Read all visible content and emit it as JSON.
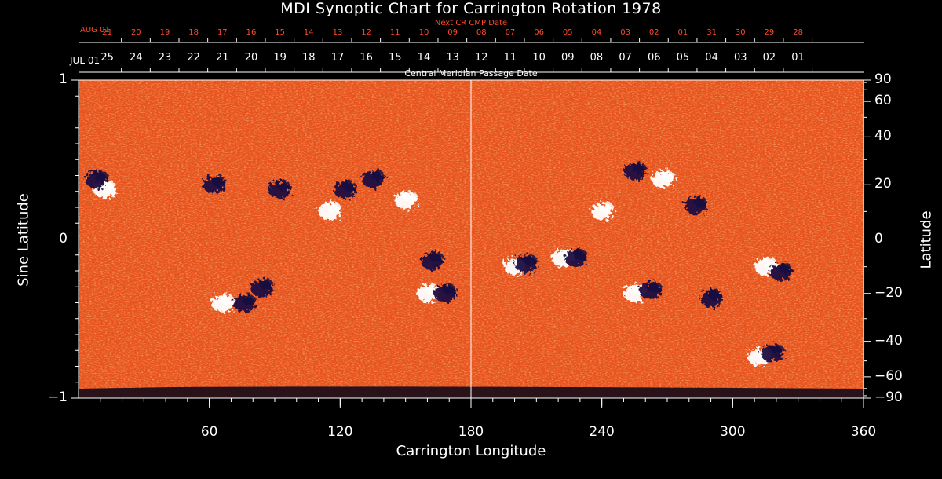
{
  "chart_data": {
    "type": "heatmap",
    "title": "MDI Synoptic Chart for Carrington Rotation 1978",
    "xlabel": "Carrington Longitude",
    "ylabel_left": "Sine Latitude",
    "ylabel_right": "Latitude",
    "xlim": [
      0,
      360
    ],
    "x_ticks": [
      60,
      120,
      180,
      240,
      300,
      360
    ],
    "x_minor_step": 10,
    "y_left_ticks": [
      {
        "label": "1",
        "sine": 1
      },
      {
        "label": "0",
        "sine": 0
      },
      {
        "label": "−1",
        "sine": -1
      }
    ],
    "y_right_ticks": [
      {
        "label": "90",
        "lat": 90
      },
      {
        "label": "60",
        "lat": 60
      },
      {
        "label": "40",
        "lat": 40
      },
      {
        "label": "20",
        "lat": 20
      },
      {
        "label": "0",
        "lat": 0
      },
      {
        "label": "−20",
        "lat": -20
      },
      {
        "label": "−40",
        "lat": -40
      },
      {
        "label": "−60",
        "lat": -60
      },
      {
        "label": "−90",
        "lat": -90
      }
    ],
    "top_axis_cmp": {
      "label": "Central Meridian Passage Date",
      "start_label": "JUL 01",
      "start_longitude": 360,
      "dates": [
        "25",
        "24",
        "23",
        "22",
        "21",
        "20",
        "19",
        "18",
        "17",
        "16",
        "15",
        "14",
        "13",
        "12",
        "11",
        "10",
        "09",
        "08",
        "07",
        "06",
        "05",
        "04",
        "03",
        "02",
        "01"
      ]
    },
    "top_axis_next": {
      "label": "Next CR CMP Date",
      "start_label": "AUG 01",
      "start_longitude": 360,
      "dates": [
        "21",
        "20",
        "19",
        "18",
        "17",
        "16",
        "15",
        "14",
        "13",
        "12",
        "11",
        "10",
        "09",
        "08",
        "07",
        "06",
        "05",
        "04",
        "03",
        "02",
        "01",
        "31",
        "30",
        "29",
        "28"
      ]
    },
    "colors": {
      "background_field": "#e8521c",
      "positive_polarity": "#ffffff",
      "negative_polarity": "#1a1040",
      "axes": "#ffffff",
      "accent_red": "#ff4a28"
    },
    "regions": [
      {
        "lon": 12,
        "lat": 18,
        "pol": "+"
      },
      {
        "lon": 8,
        "lat": 22,
        "pol": "-"
      },
      {
        "lon": 62,
        "lat": 20,
        "pol": "-"
      },
      {
        "lon": 92,
        "lat": 18,
        "pol": "-"
      },
      {
        "lon": 115,
        "lat": 10,
        "pol": "+"
      },
      {
        "lon": 122,
        "lat": 18,
        "pol": "-"
      },
      {
        "lon": 135,
        "lat": 22,
        "pol": "-"
      },
      {
        "lon": 150,
        "lat": 14,
        "pol": "+"
      },
      {
        "lon": 240,
        "lat": 10,
        "pol": "+"
      },
      {
        "lon": 255,
        "lat": 25,
        "pol": "-"
      },
      {
        "lon": 268,
        "lat": 22,
        "pol": "+"
      },
      {
        "lon": 283,
        "lat": 12,
        "pol": "-"
      },
      {
        "lon": 66,
        "lat": -24,
        "pol": "+"
      },
      {
        "lon": 76,
        "lat": -24,
        "pol": "-"
      },
      {
        "lon": 84,
        "lat": -18,
        "pol": "-"
      },
      {
        "lon": 162,
        "lat": -8,
        "pol": "-"
      },
      {
        "lon": 160,
        "lat": -20,
        "pol": "+"
      },
      {
        "lon": 168,
        "lat": -20,
        "pol": "-"
      },
      {
        "lon": 200,
        "lat": -10,
        "pol": "+"
      },
      {
        "lon": 205,
        "lat": -9,
        "pol": "-"
      },
      {
        "lon": 222,
        "lat": -7,
        "pol": "+"
      },
      {
        "lon": 228,
        "lat": -7,
        "pol": "-"
      },
      {
        "lon": 255,
        "lat": -20,
        "pol": "+"
      },
      {
        "lon": 262,
        "lat": -19,
        "pol": "-"
      },
      {
        "lon": 290,
        "lat": -22,
        "pol": "-"
      },
      {
        "lon": 315,
        "lat": -10,
        "pol": "+"
      },
      {
        "lon": 322,
        "lat": -12,
        "pol": "-"
      },
      {
        "lon": 312,
        "lat": -48,
        "pol": "+"
      },
      {
        "lon": 318,
        "lat": -46,
        "pol": "-"
      }
    ]
  }
}
